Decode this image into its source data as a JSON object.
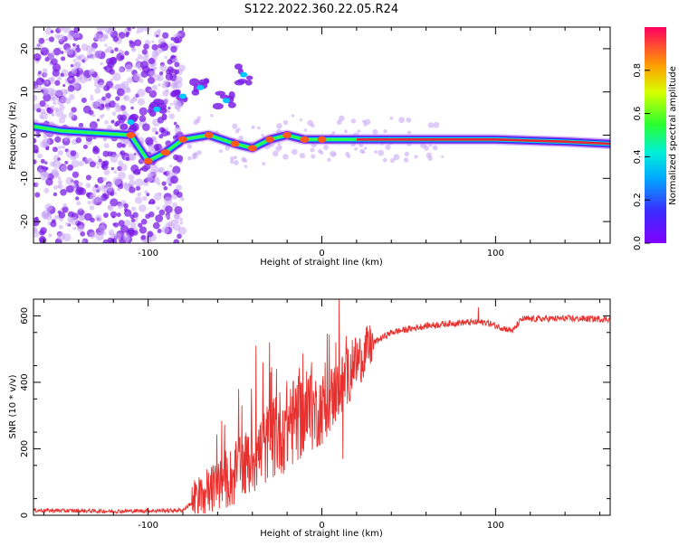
{
  "title": "S122.2022.360.22.05.R24",
  "colors": {
    "snr_line": "#e8312e",
    "dots": "#7b1ee6",
    "dots_light": "#c9a8f5",
    "center_red": "#e8203a"
  },
  "chart_data": [
    {
      "type": "heatmap",
      "xlabel": "Height of straight line (km)",
      "ylabel": "Frequency (Hz)",
      "xlim": [
        -166,
        166
      ],
      "ylim": [
        -25,
        25
      ],
      "xticks": [
        -100,
        0,
        100
      ],
      "yticks": [
        20,
        10,
        0,
        -10,
        -20
      ],
      "colorbar": {
        "label": "Normalized spectral amplitude",
        "range": [
          0,
          1
        ],
        "ticks": [
          0.0,
          0.2,
          0.4,
          0.6,
          0.8
        ],
        "colormap": "rainbow"
      },
      "ridge": [
        {
          "x": -166,
          "y": 2
        },
        {
          "x": -150,
          "y": 1
        },
        {
          "x": -130,
          "y": 0.5
        },
        {
          "x": -110,
          "y": 0
        },
        {
          "x": -100,
          "y": -6
        },
        {
          "x": -90,
          "y": -4
        },
        {
          "x": -80,
          "y": -1
        },
        {
          "x": -65,
          "y": 0
        },
        {
          "x": -50,
          "y": -2
        },
        {
          "x": -40,
          "y": -3
        },
        {
          "x": -30,
          "y": -1
        },
        {
          "x": -20,
          "y": 0
        },
        {
          "x": -10,
          "y": -1
        },
        {
          "x": 0,
          "y": -1
        },
        {
          "x": 20,
          "y": -1
        },
        {
          "x": 60,
          "y": -1
        },
        {
          "x": 100,
          "y": -1
        },
        {
          "x": 140,
          "y": -1.5
        },
        {
          "x": 166,
          "y": -2
        }
      ],
      "upper_branch": [
        {
          "x": -110,
          "y": 3
        },
        {
          "x": -95,
          "y": 6
        },
        {
          "x": -80,
          "y": 9
        },
        {
          "x": -70,
          "y": 11
        },
        {
          "x": -55,
          "y": 8
        },
        {
          "x": -45,
          "y": 14
        }
      ]
    },
    {
      "type": "line",
      "xlabel": "Height of straight line (km)",
      "ylabel": "SNR (10 * v/v)",
      "xlim": [
        -166,
        166
      ],
      "ylim": [
        0,
        650
      ],
      "xticks": [
        -100,
        0,
        100
      ],
      "yticks": [
        0,
        200,
        400,
        600
      ],
      "envelope": [
        {
          "x": -166,
          "y": 15
        },
        {
          "x": -120,
          "y": 12
        },
        {
          "x": -80,
          "y": 15
        },
        {
          "x": -70,
          "y": 60
        },
        {
          "x": -60,
          "y": 90
        },
        {
          "x": -50,
          "y": 120
        },
        {
          "x": -40,
          "y": 170
        },
        {
          "x": -30,
          "y": 220
        },
        {
          "x": -20,
          "y": 270
        },
        {
          "x": -10,
          "y": 300
        },
        {
          "x": 0,
          "y": 320
        },
        {
          "x": 10,
          "y": 380
        },
        {
          "x": 20,
          "y": 460
        },
        {
          "x": 30,
          "y": 520
        },
        {
          "x": 40,
          "y": 550
        },
        {
          "x": 60,
          "y": 570
        },
        {
          "x": 80,
          "y": 580
        },
        {
          "x": 95,
          "y": 580
        },
        {
          "x": 100,
          "y": 570
        },
        {
          "x": 110,
          "y": 555
        },
        {
          "x": 115,
          "y": 590
        },
        {
          "x": 140,
          "y": 592
        },
        {
          "x": 166,
          "y": 590
        }
      ],
      "spikes": [
        {
          "x": -48,
          "y": 380
        },
        {
          "x": -46,
          "y": 330
        },
        {
          "x": -38,
          "y": 510
        },
        {
          "x": -34,
          "y": 460
        },
        {
          "x": -30,
          "y": 520
        },
        {
          "x": -26,
          "y": 440
        },
        {
          "x": -18,
          "y": 380
        },
        {
          "x": -12,
          "y": 400
        },
        {
          "x": -6,
          "y": 460
        },
        {
          "x": 2,
          "y": 460
        },
        {
          "x": 8,
          "y": 520
        },
        {
          "x": 10,
          "y": 650
        },
        {
          "x": 12,
          "y": 170
        },
        {
          "x": 14,
          "y": 540
        },
        {
          "x": 90,
          "y": 625
        }
      ]
    }
  ]
}
